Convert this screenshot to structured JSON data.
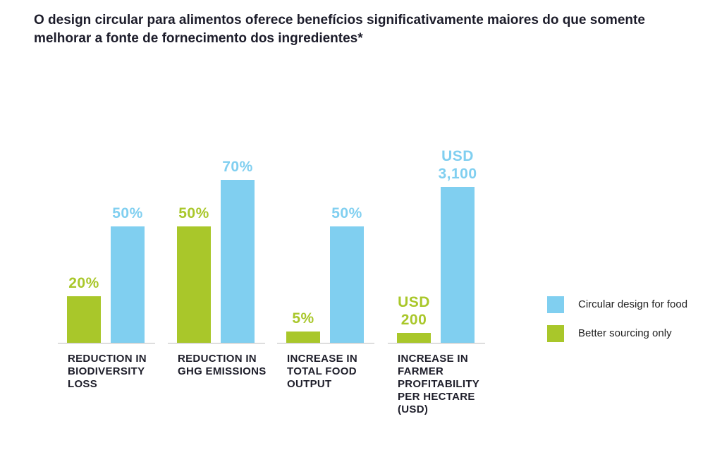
{
  "chart_data": [
    {
      "type": "bar",
      "title": "O design circular para alimentos oferece benefícios significativamente maiores do que somente melhorar a fonte de fornecimento dos ingredientes*",
      "categories": [
        "REDUCTION IN BIODIVERSITY LOSS",
        "REDUCTION IN GHG EMISSIONS",
        "INCREASE IN TOTAL FOOD OUTPUT"
      ],
      "series": [
        {
          "name": "Better sourcing only",
          "color": "#a9c72a",
          "values": [
            20,
            50,
            5
          ],
          "value_labels": [
            "20%",
            "50%",
            "5%"
          ]
        },
        {
          "name": "Circular design for food",
          "color": "#80cff0",
          "values": [
            50,
            70,
            50
          ],
          "value_labels": [
            "50%",
            "70%",
            "50%"
          ]
        }
      ]
    },
    {
      "type": "bar",
      "categories": [
        "INCREASE IN FARMER PROFITABILITY PER HECTARE (USD)"
      ],
      "series": [
        {
          "name": "Better sourcing only",
          "color": "#a9c72a",
          "values": [
            200
          ],
          "value_labels": [
            "USD 200"
          ]
        },
        {
          "name": "Circular design for food",
          "color": "#80cff0",
          "values": [
            3100
          ],
          "value_labels": [
            "USD 3,100"
          ]
        }
      ]
    }
  ]
}
